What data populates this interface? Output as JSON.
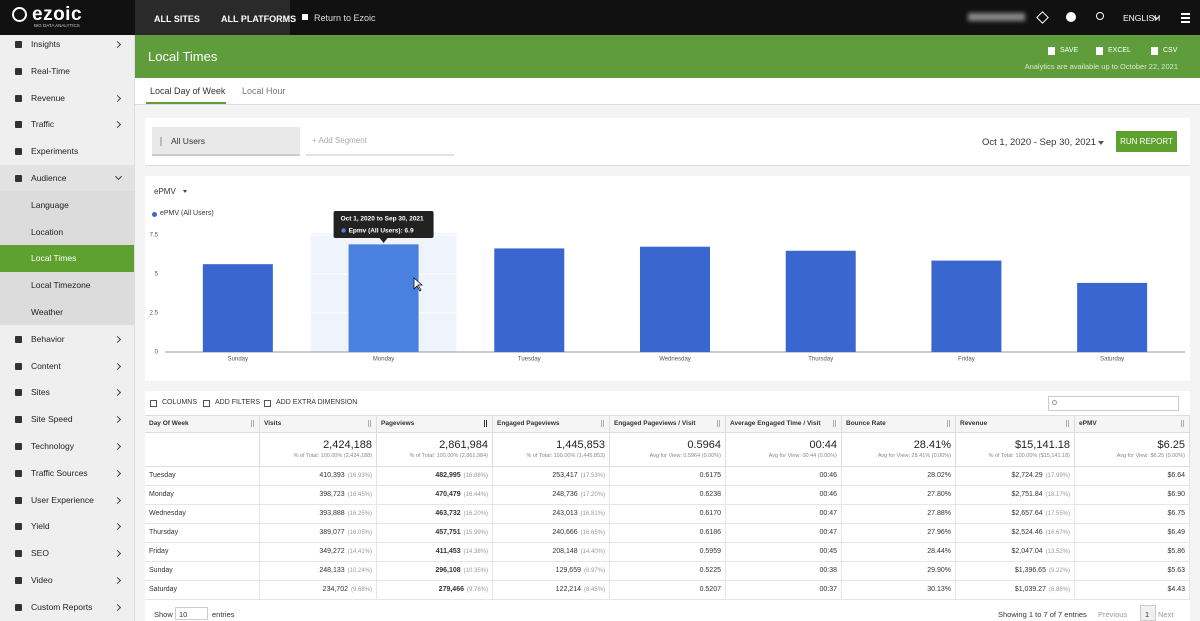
{
  "topbar": {
    "logo": "ezoic",
    "logo_sub": "BIG DATA ANALYTICS",
    "tabs": [
      "ALL SITES",
      "ALL PLATFORMS"
    ],
    "return": "Return to Ezoic",
    "language": "ENGLISH"
  },
  "sidebar": {
    "items": [
      {
        "label": "Insights",
        "arrow": true
      },
      {
        "label": "Real-Time",
        "arrow": false
      },
      {
        "label": "Revenue",
        "arrow": true
      },
      {
        "label": "Traffic",
        "arrow": true
      },
      {
        "label": "Experiments",
        "arrow": false
      },
      {
        "label": "Audience",
        "arrow": true,
        "expanded": true,
        "submenu": [
          "Language",
          "Location",
          "Local Times",
          "Local Timezone",
          "Weather"
        ],
        "active_index": 2
      },
      {
        "label": "Behavior",
        "arrow": true
      },
      {
        "label": "Content",
        "arrow": true
      },
      {
        "label": "Sites",
        "arrow": true
      },
      {
        "label": "Site Speed",
        "arrow": true
      },
      {
        "label": "Technology",
        "arrow": true
      },
      {
        "label": "Traffic Sources",
        "arrow": true
      },
      {
        "label": "User Experience",
        "arrow": true
      },
      {
        "label": "Yield",
        "arrow": true
      },
      {
        "label": "SEO",
        "arrow": true
      },
      {
        "label": "Video",
        "arrow": true
      },
      {
        "label": "Custom Reports",
        "arrow": true
      }
    ]
  },
  "header": {
    "title": "Local Times",
    "actions": [
      "SAVE",
      "EXCEL",
      "CSV"
    ],
    "note": "Analytics are available up to October 22, 2021"
  },
  "tabs": {
    "items": [
      "Local Day of Week",
      "Local Hour"
    ],
    "active_index": 0
  },
  "segments": {
    "selected": "All Users",
    "add": "+ Add Segment",
    "date_range": "Oct 1, 2020 - Sep 30, 2021",
    "button": "RUN REPORT"
  },
  "chart": {
    "type": "bar",
    "metric": "ePMV",
    "legend": "ePMV (All Users)",
    "categories": [
      "Sunday",
      "Monday",
      "Tuesday",
      "Wednesday",
      "Thursday",
      "Friday",
      "Saturday"
    ],
    "values": [
      5.63,
      6.9,
      6.64,
      6.75,
      6.49,
      5.86,
      4.43
    ],
    "color": "#3a67cf",
    "highlight_color": "#4a80e0",
    "ylim": [
      0,
      7.5
    ],
    "yticks": [
      0,
      2.5,
      5,
      7.5
    ],
    "highlight_index": 1,
    "tooltip": {
      "title": "Oct 1, 2020 to Sep 30, 2021",
      "text": "Epmv (All Users): 6.9"
    }
  },
  "table": {
    "toolbar": [
      "COLUMNS",
      "ADD FILTERS",
      "ADD EXTRA DIMENSION"
    ],
    "columns": [
      "Day Of Week",
      "Visits",
      "Pageviews",
      "Engaged Pageviews",
      "Engaged Pageviews / Visit",
      "Average Engaged Time / Visit",
      "Bounce Rate",
      "Revenue",
      "ePMV"
    ],
    "sorted_index": 2,
    "totals": [
      [
        "2,424,188",
        "% of Total: 100.00% (2,424,188)"
      ],
      [
        "2,861,984",
        "% of Total: 100.00% (2,861,984)"
      ],
      [
        "1,445,853",
        "% of Total: 100.00% (1,445,853)"
      ],
      [
        "0.5964",
        "Avg for View: 0.5964 (0.00%)"
      ],
      [
        "00:44",
        "Avg for View: 00:44 (0.00%)"
      ],
      [
        "28.41%",
        "Avg for View: 28.41% (0.00%)"
      ],
      [
        "$15,141.18",
        "% of Total: 100.00% ($15,141.18)"
      ],
      [
        "$6.25",
        "Avg for View: $6.25 (0.00%)"
      ]
    ],
    "rows": [
      [
        [
          "Tuesday"
        ],
        [
          "410,393",
          "(16.93%)"
        ],
        [
          "482,995",
          "(16.88%)"
        ],
        [
          "253,417",
          "(17.53%)"
        ],
        [
          "0.6175"
        ],
        [
          "00:46"
        ],
        [
          "28.02%"
        ],
        [
          "$2,724.29",
          "(17.99%)"
        ],
        [
          "$6.64"
        ]
      ],
      [
        [
          "Monday"
        ],
        [
          "398,723",
          "(16.45%)"
        ],
        [
          "470,479",
          "(16.44%)"
        ],
        [
          "248,736",
          "(17.20%)"
        ],
        [
          "0.6238"
        ],
        [
          "00:46"
        ],
        [
          "27.80%"
        ],
        [
          "$2,751.84",
          "(18.17%)"
        ],
        [
          "$6.90"
        ]
      ],
      [
        [
          "Wednesday"
        ],
        [
          "393,888",
          "(16.25%)"
        ],
        [
          "463,732",
          "(16.20%)"
        ],
        [
          "243,013",
          "(16.81%)"
        ],
        [
          "0.6170"
        ],
        [
          "00:47"
        ],
        [
          "27.88%"
        ],
        [
          "$2,657.64",
          "(17.55%)"
        ],
        [
          "$6.75"
        ]
      ],
      [
        [
          "Thursday"
        ],
        [
          "389,077",
          "(16.05%)"
        ],
        [
          "457,751",
          "(15.99%)"
        ],
        [
          "240,666",
          "(16.65%)"
        ],
        [
          "0.6186"
        ],
        [
          "00:47"
        ],
        [
          "27.96%"
        ],
        [
          "$2,524.46",
          "(16.67%)"
        ],
        [
          "$6.49"
        ]
      ],
      [
        [
          "Friday"
        ],
        [
          "349,272",
          "(14.41%)"
        ],
        [
          "411,453",
          "(14.38%)"
        ],
        [
          "208,148",
          "(14.40%)"
        ],
        [
          "0.5959"
        ],
        [
          "00:45"
        ],
        [
          "28.44%"
        ],
        [
          "$2,047.04",
          "(13.52%)"
        ],
        [
          "$5.86"
        ]
      ],
      [
        [
          "Sunday"
        ],
        [
          "248,133",
          "(10.24%)"
        ],
        [
          "296,108",
          "(10.35%)"
        ],
        [
          "129,659",
          "(8.97%)"
        ],
        [
          "0.5225"
        ],
        [
          "00:38"
        ],
        [
          "29.90%"
        ],
        [
          "$1,396.65",
          "(9.22%)"
        ],
        [
          "$5.63"
        ]
      ],
      [
        [
          "Saturday"
        ],
        [
          "234,702",
          "(9.68%)"
        ],
        [
          "279,466",
          "(9.76%)"
        ],
        [
          "122,214",
          "(8.45%)"
        ],
        [
          "0.5207"
        ],
        [
          "00:37"
        ],
        [
          "30.13%"
        ],
        [
          "$1,039.27",
          "(6.86%)"
        ],
        [
          "$4.43"
        ]
      ]
    ]
  },
  "footer": {
    "show": "Show",
    "length": "10",
    "entries": "entries",
    "info": "Showing 1 to 7 of 7 entries",
    "pages": [
      "Previous",
      "1",
      "Next"
    ],
    "current_index": 1
  }
}
